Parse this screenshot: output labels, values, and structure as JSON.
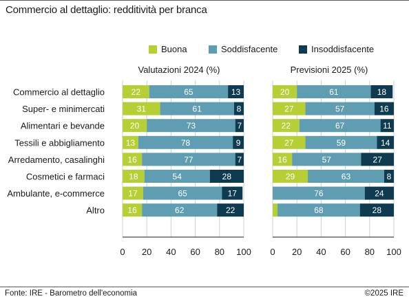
{
  "title": "Commercio al dettaglio: redditività per branca",
  "source": "Fonte: IRE - Barometro dell'economia",
  "copyright": "©2025 IRE",
  "colors": {
    "Buona": "#b5cf35",
    "Soddisfacente": "#5f9db3",
    "Insoddisfacente": "#0f3b50"
  },
  "chart_data": {
    "type": "bar",
    "orientation": "horizontal",
    "stacked": true,
    "legend_position": "top",
    "categories": [
      "Commercio al dettaglio",
      "Super- e minimercati",
      "Alimentari e bevande",
      "Tessili e abbigliamento",
      "Arredamento, casalinghi",
      "Cosmetici e farmaci",
      "Ambulante, e-commerce",
      "Altro"
    ],
    "series_names": [
      "Buona",
      "Soddisfacente",
      "Insoddisfacente"
    ],
    "panels": [
      {
        "title": "Valutazioni 2024 (%)",
        "series": [
          {
            "name": "Buona",
            "values": [
              22,
              31,
              20,
              13,
              16,
              18,
              17,
              16
            ]
          },
          {
            "name": "Soddisfacente",
            "values": [
              65,
              61,
              73,
              78,
              77,
              54,
              65,
              62
            ]
          },
          {
            "name": "Insoddisfacente",
            "values": [
              13,
              8,
              7,
              9,
              7,
              28,
              17,
              22
            ]
          }
        ],
        "labels_shown": [
          [
            true,
            true,
            true
          ],
          [
            true,
            true,
            true
          ],
          [
            true,
            true,
            true
          ],
          [
            true,
            true,
            true
          ],
          [
            true,
            true,
            true
          ],
          [
            true,
            true,
            true
          ],
          [
            true,
            true,
            true
          ],
          [
            true,
            true,
            true
          ]
        ]
      },
      {
        "title": "Previsioni 2025 (%)",
        "series": [
          {
            "name": "Buona",
            "values": [
              20,
              27,
              22,
              27,
              16,
              29,
              0,
              4
            ]
          },
          {
            "name": "Soddisfacente",
            "values": [
              61,
              57,
              67,
              59,
              57,
              63,
              76,
              68
            ]
          },
          {
            "name": "Insoddisfacente",
            "values": [
              18,
              16,
              11,
              14,
              27,
              8,
              24,
              28
            ]
          }
        ],
        "labels_shown": [
          [
            true,
            true,
            true
          ],
          [
            true,
            true,
            true
          ],
          [
            true,
            true,
            true
          ],
          [
            true,
            true,
            true
          ],
          [
            true,
            true,
            true
          ],
          [
            true,
            true,
            true
          ],
          [
            false,
            true,
            true
          ],
          [
            false,
            true,
            true
          ]
        ]
      }
    ],
    "xlim": [
      0,
      100
    ],
    "xticks": [
      0,
      20,
      40,
      60,
      80,
      100
    ],
    "grid": true
  }
}
